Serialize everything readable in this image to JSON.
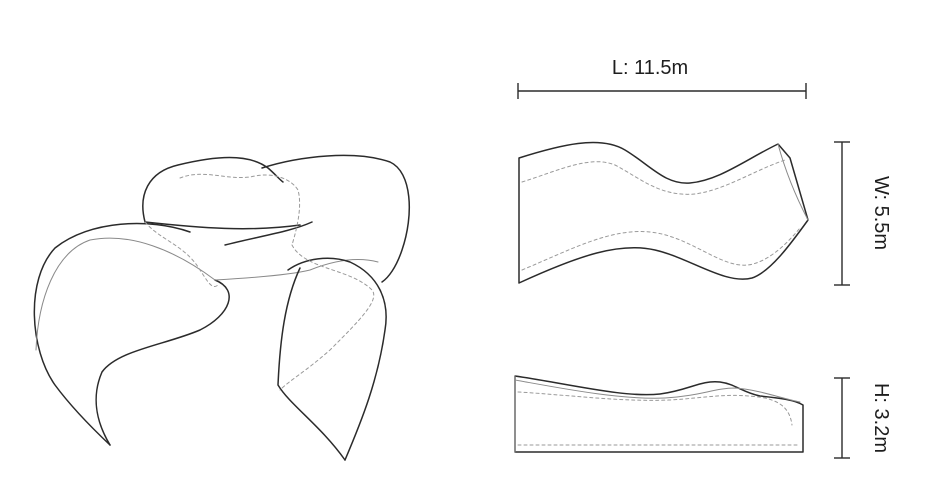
{
  "dimensions": {
    "length_label": "L: 11.5m",
    "width_label": "W: 5.5m",
    "height_label": "H: 3.2m"
  },
  "colors": {
    "line": "#2b2b2b",
    "hidden_line": "#9a9a9a",
    "background": "#ffffff"
  }
}
